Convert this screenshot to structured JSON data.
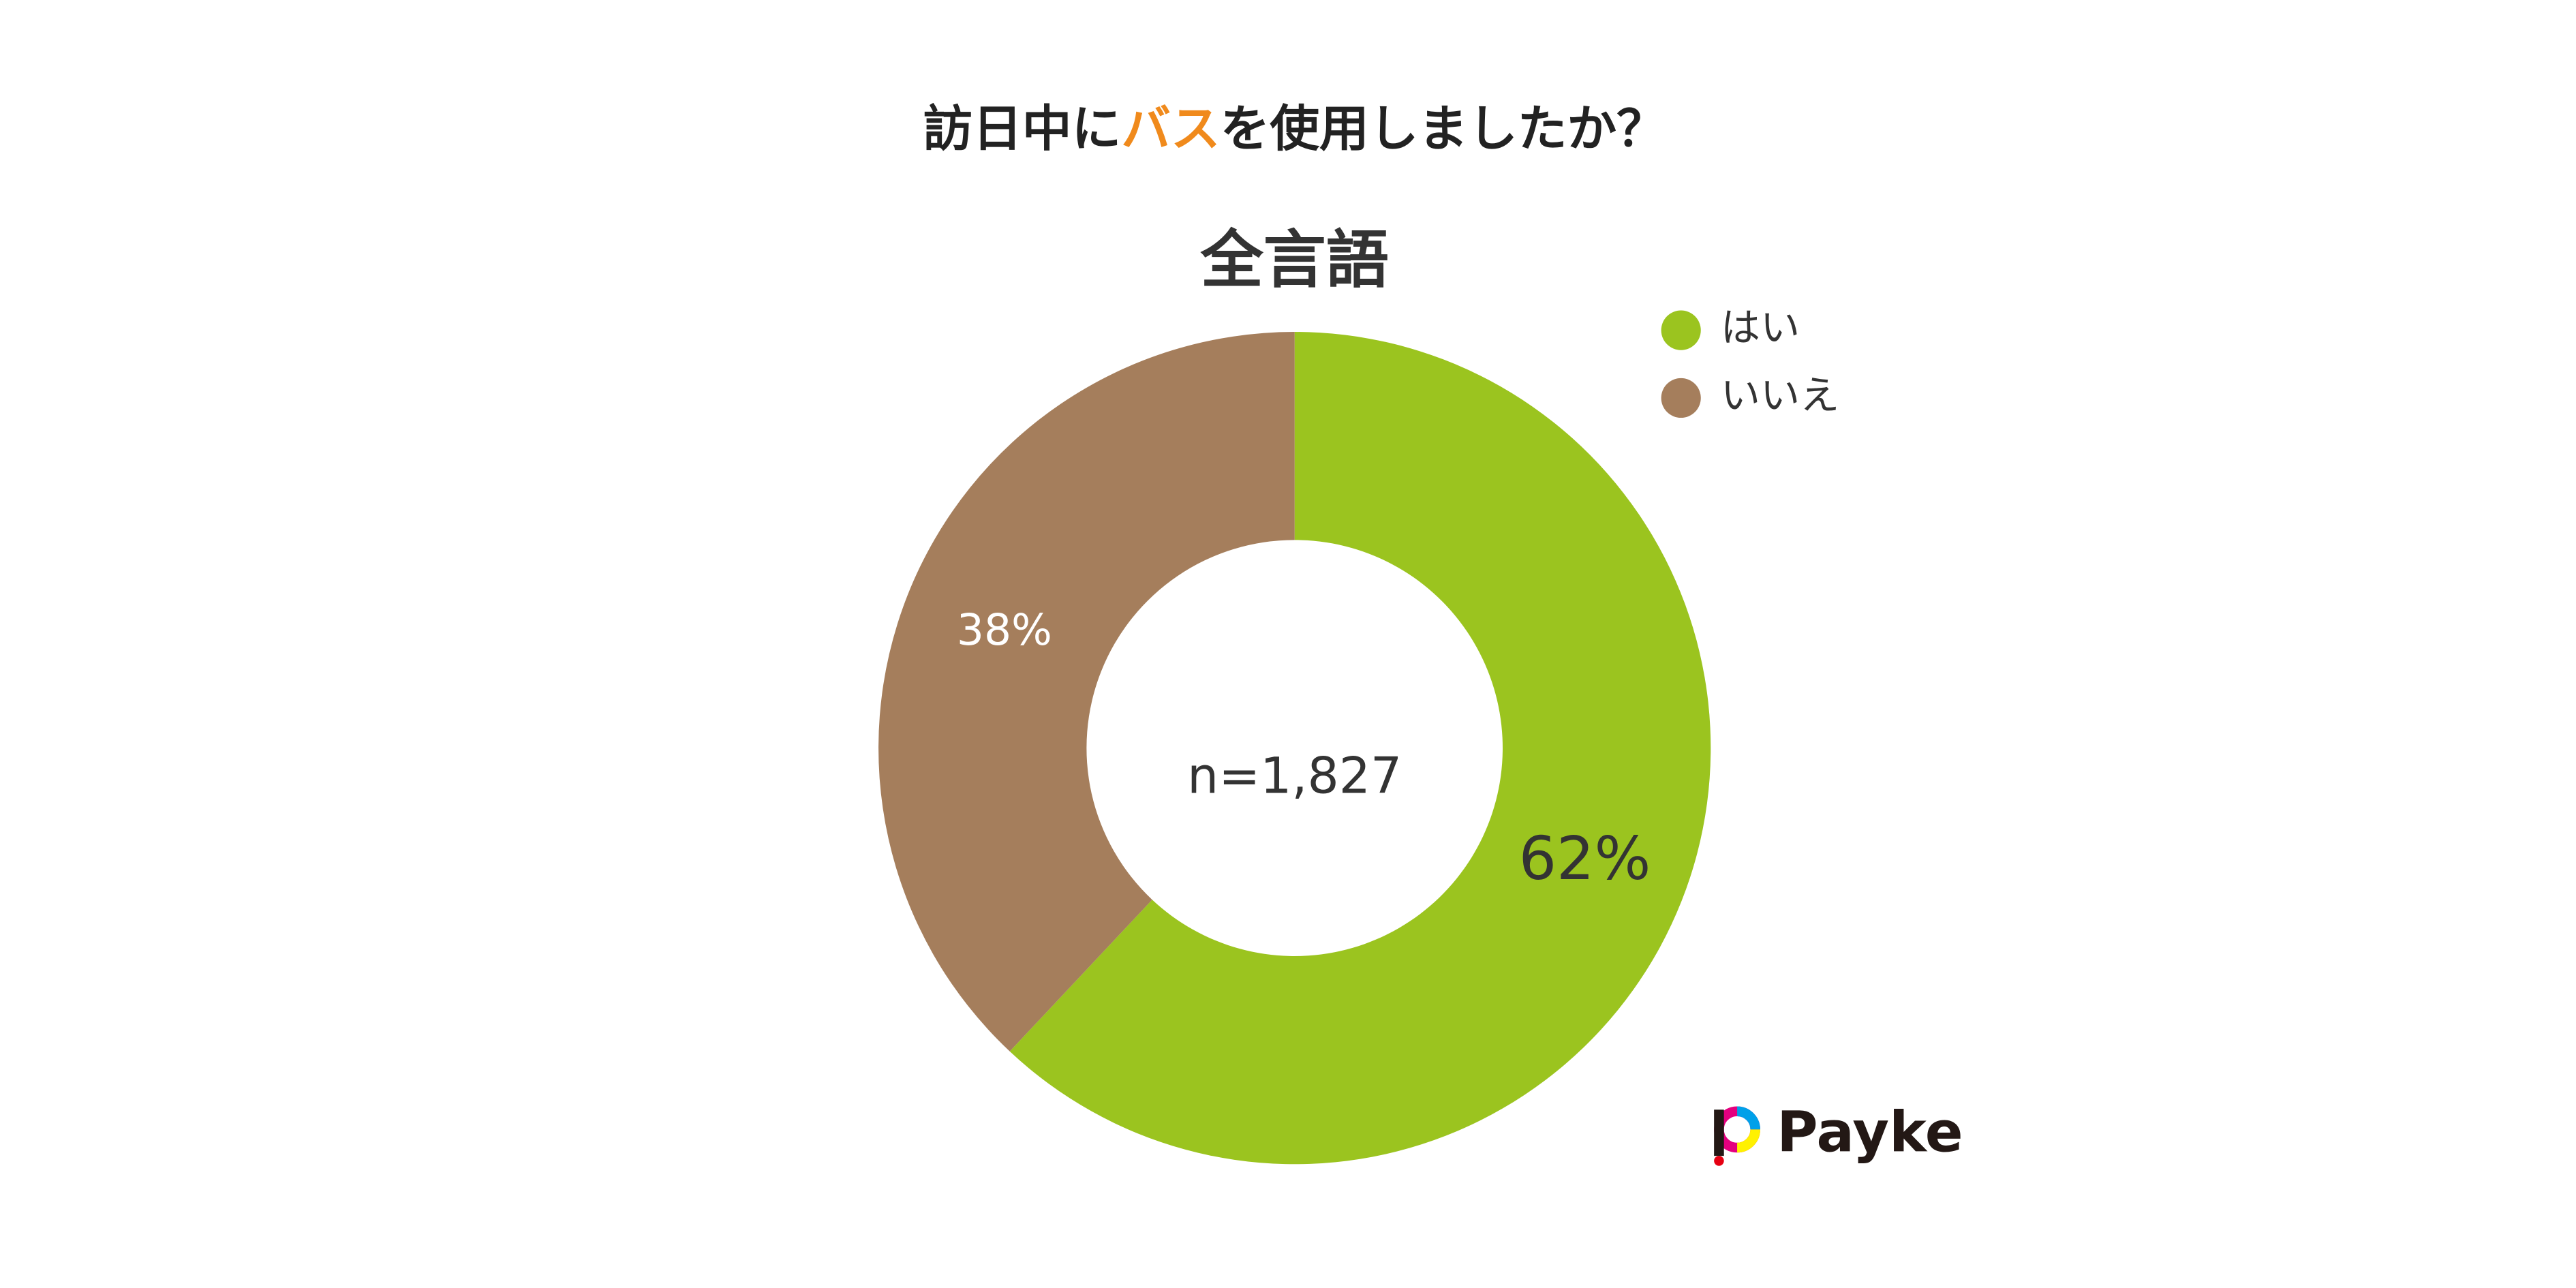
{
  "chart_data": {
    "type": "donut",
    "title": [
      "訪日中に",
      "バス",
      "を使用しましたか？"
    ],
    "subtitle": "全言語",
    "categories": [
      "はい",
      "いいえ"
    ],
    "values": [
      62,
      38
    ],
    "value_labels": [
      "62%",
      "38%"
    ],
    "colors": [
      "#9bc41f",
      "#a57e5c"
    ],
    "annotation": "n=1,827",
    "legend": "top-right"
  },
  "logo": "Payke"
}
